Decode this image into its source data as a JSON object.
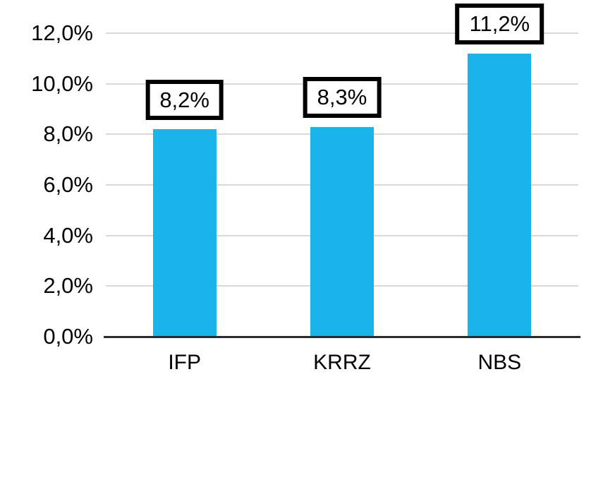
{
  "chart_data": {
    "type": "bar",
    "title": "",
    "xlabel": "",
    "ylabel": "",
    "categories": [
      "IFP",
      "KRRZ",
      "NBS"
    ],
    "values": [
      8.2,
      8.3,
      11.2
    ],
    "data_labels": [
      "8,2%",
      "8,3%",
      "11,2%"
    ],
    "y_ticks": [
      {
        "value": 0,
        "label": "0,0%"
      },
      {
        "value": 2,
        "label": "2,0%"
      },
      {
        "value": 4,
        "label": "4,0%"
      },
      {
        "value": 6,
        "label": "6,0%"
      },
      {
        "value": 8,
        "label": "8,0%"
      },
      {
        "value": 10,
        "label": "10,0%"
      },
      {
        "value": 12,
        "label": "12,0%"
      }
    ],
    "ylim": [
      0,
      12
    ],
    "grid": "horizontal",
    "legend": "none",
    "colors": {
      "bar": "#18B4EA",
      "gridline": "#D9D9D9",
      "axis": "#2B2B2B",
      "label_box_border": "#000000",
      "label_box_fill": "#FFFFFF",
      "text": "#000000"
    }
  }
}
